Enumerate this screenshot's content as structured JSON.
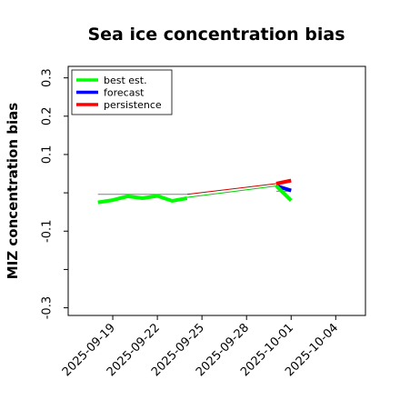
{
  "chart_data": {
    "type": "line",
    "title": "Sea ice concentration bias",
    "ylabel": "MIZ concentration bias",
    "xlabel": "",
    "xlim": [
      "2025-09-16",
      "2025-10-06"
    ],
    "ylim": [
      -0.32,
      0.33
    ],
    "x_ticks": [
      "2025-09-19",
      "2025-09-22",
      "2025-09-25",
      "2025-09-28",
      "2025-10-01",
      "2025-10-04"
    ],
    "highlighted_x_tick": "2025-09-25",
    "highlight_color": "#228b22",
    "y_ticks": [
      -0.3,
      -0.2,
      -0.1,
      0.0,
      0.1,
      0.2,
      0.3
    ],
    "y_tick_labels": [
      "-0.3",
      "",
      "-0.1",
      "",
      "0.1",
      "0.2",
      "0.3"
    ],
    "legend": {
      "placement": "top-left",
      "entries": [
        {
          "label": "best est.",
          "color": "#00ff00"
        },
        {
          "label": "forecast",
          "color": "#0000ff"
        },
        {
          "label": "persistence",
          "color": "#ff0000"
        }
      ]
    },
    "series": [
      {
        "name": "best est.",
        "color": "#00ff00",
        "x": [
          "2025-09-18",
          "2025-09-19",
          "2025-09-20",
          "2025-09-21",
          "2025-09-22",
          "2025-09-23",
          "2025-09-24"
        ],
        "values": [
          -0.025,
          -0.019,
          -0.009,
          -0.014,
          -0.008,
          -0.021,
          -0.014
        ]
      },
      {
        "name": "forecast",
        "color": "#0000ff",
        "x": [
          "2025-09-30",
          "2025-10-01"
        ],
        "values": [
          0.018,
          0.006
        ]
      },
      {
        "name": "persistence",
        "color": "#ff0000",
        "x": [
          "2025-09-30",
          "2025-10-01"
        ],
        "values": [
          0.024,
          0.032
        ]
      },
      {
        "color": "#00ff00",
        "x": [
          "2025-09-30",
          "2025-10-01"
        ],
        "values": [
          0.018,
          -0.02
        ]
      }
    ],
    "connectors": [
      {
        "color": "#00cc00",
        "x": [
          "2025-09-24",
          "2025-09-30"
        ],
        "values": [
          -0.012,
          0.018
        ]
      },
      {
        "color": "#cc0000",
        "x": [
          "2025-09-24",
          "2025-09-30"
        ],
        "values": [
          -0.004,
          0.024
        ]
      },
      {
        "color": "#808080",
        "x": [
          "2025-09-18",
          "2025-09-24"
        ],
        "values": [
          -0.004,
          -0.004
        ]
      },
      {
        "color": "#808080",
        "x": [
          "2025-09-30",
          "2025-10-01"
        ],
        "values": [
          0.004,
          0.004
        ]
      }
    ]
  }
}
